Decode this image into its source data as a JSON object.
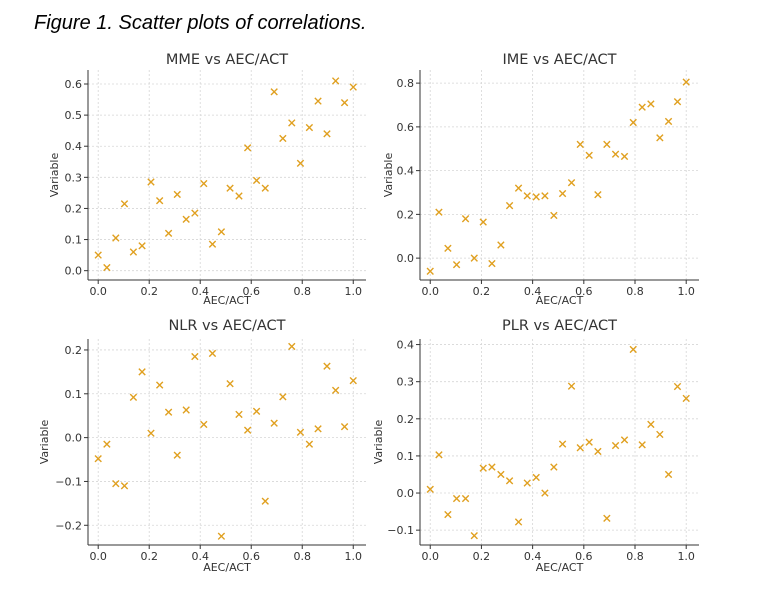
{
  "caption": "Figure 1. Scatter plots of correlations.",
  "marker": "x",
  "marker_color": "#E0A020",
  "chart_data": [
    {
      "type": "scatter",
      "title": "MME vs AEC/ACT",
      "xlabel": "AEC/ACT",
      "ylabel": "Variable",
      "xlim": [
        -0.04,
        1.05
      ],
      "ylim": [
        -0.03,
        0.645
      ],
      "xticks": [
        "0.0",
        "0.2",
        "0.4",
        "0.6",
        "0.8",
        "1.0"
      ],
      "yticks": [
        "0.0",
        "0.1",
        "0.2",
        "0.3",
        "0.4",
        "0.5",
        "0.6"
      ],
      "grid": true,
      "x": [
        0.0,
        0.034,
        0.069,
        0.103,
        0.138,
        0.172,
        0.207,
        0.241,
        0.276,
        0.31,
        0.345,
        0.379,
        0.414,
        0.448,
        0.483,
        0.517,
        0.552,
        0.586,
        0.621,
        0.655,
        0.69,
        0.724,
        0.759,
        0.793,
        0.828,
        0.862,
        0.897,
        0.931,
        0.966,
        1.0
      ],
      "y": [
        0.05,
        0.01,
        0.105,
        0.215,
        0.06,
        0.08,
        0.285,
        0.225,
        0.12,
        0.245,
        0.165,
        0.185,
        0.28,
        0.085,
        0.125,
        0.265,
        0.24,
        0.395,
        0.29,
        0.265,
        0.575,
        0.425,
        0.475,
        0.345,
        0.46,
        0.545,
        0.44,
        0.61,
        0.54,
        0.59
      ]
    },
    {
      "type": "scatter",
      "title": "IME vs AEC/ACT",
      "xlabel": "AEC/ACT",
      "ylabel": "Variable",
      "xlim": [
        -0.04,
        1.05
      ],
      "ylim": [
        -0.1,
        0.86
      ],
      "xticks": [
        "0.0",
        "0.2",
        "0.4",
        "0.6",
        "0.8",
        "1.0"
      ],
      "yticks": [
        "0.0",
        "0.2",
        "0.4",
        "0.6",
        "0.8"
      ],
      "grid": true,
      "x": [
        0.0,
        0.034,
        0.069,
        0.103,
        0.138,
        0.172,
        0.207,
        0.241,
        0.276,
        0.31,
        0.345,
        0.379,
        0.414,
        0.448,
        0.483,
        0.517,
        0.552,
        0.586,
        0.621,
        0.655,
        0.69,
        0.724,
        0.759,
        0.793,
        0.828,
        0.862,
        0.897,
        0.931,
        0.966,
        1.0
      ],
      "y": [
        -0.06,
        0.21,
        0.045,
        -0.03,
        0.18,
        0.0,
        0.165,
        -0.025,
        0.06,
        0.24,
        0.32,
        0.285,
        0.28,
        0.285,
        0.195,
        0.295,
        0.345,
        0.52,
        0.47,
        0.29,
        0.52,
        0.475,
        0.465,
        0.62,
        0.69,
        0.705,
        0.55,
        0.625,
        0.715,
        0.805
      ]
    },
    {
      "type": "scatter",
      "title": "NLR vs AEC/ACT",
      "xlabel": "AEC/ACT",
      "ylabel": "Variable",
      "xlim": [
        -0.04,
        1.05
      ],
      "ylim": [
        -0.245,
        0.225
      ],
      "xticks": [
        "0.0",
        "0.2",
        "0.4",
        "0.6",
        "0.8",
        "1.0"
      ],
      "yticks": [
        "−0.2",
        "−0.1",
        "0.0",
        "0.1",
        "0.2"
      ],
      "grid": true,
      "x": [
        0.0,
        0.034,
        0.069,
        0.103,
        0.138,
        0.172,
        0.207,
        0.241,
        0.276,
        0.31,
        0.345,
        0.379,
        0.414,
        0.448,
        0.483,
        0.517,
        0.552,
        0.586,
        0.621,
        0.655,
        0.69,
        0.724,
        0.759,
        0.793,
        0.828,
        0.862,
        0.897,
        0.931,
        0.966,
        1.0
      ],
      "y": [
        -0.048,
        -0.015,
        -0.105,
        -0.11,
        0.092,
        0.15,
        0.01,
        0.12,
        0.058,
        -0.04,
        0.063,
        0.185,
        0.03,
        0.192,
        -0.225,
        0.123,
        0.053,
        0.017,
        0.06,
        -0.145,
        0.033,
        0.093,
        0.208,
        0.012,
        -0.015,
        0.02,
        0.163,
        0.108,
        0.025,
        0.13
      ]
    },
    {
      "type": "scatter",
      "title": "PLR vs AEC/ACT",
      "xlabel": "AEC/ACT",
      "ylabel": "Variable",
      "xlim": [
        -0.04,
        1.05
      ],
      "ylim": [
        -0.14,
        0.415
      ],
      "xticks": [
        "0.0",
        "0.2",
        "0.4",
        "0.6",
        "0.8",
        "1.0"
      ],
      "yticks": [
        "−0.1",
        "0.0",
        "0.1",
        "0.2",
        "0.3",
        "0.4"
      ],
      "grid": true,
      "x": [
        0.0,
        0.034,
        0.069,
        0.103,
        0.138,
        0.172,
        0.207,
        0.241,
        0.276,
        0.31,
        0.345,
        0.379,
        0.414,
        0.448,
        0.483,
        0.517,
        0.552,
        0.586,
        0.621,
        0.655,
        0.69,
        0.724,
        0.759,
        0.793,
        0.828,
        0.862,
        0.897,
        0.931,
        0.966,
        1.0
      ],
      "y": [
        0.01,
        0.103,
        -0.058,
        -0.015,
        -0.015,
        -0.115,
        0.067,
        0.07,
        0.05,
        0.033,
        -0.078,
        0.027,
        0.042,
        0.0,
        0.07,
        0.132,
        0.288,
        0.122,
        0.137,
        0.112,
        -0.068,
        0.128,
        0.143,
        0.387,
        0.13,
        0.185,
        0.158,
        0.05,
        0.287,
        0.255
      ]
    }
  ]
}
